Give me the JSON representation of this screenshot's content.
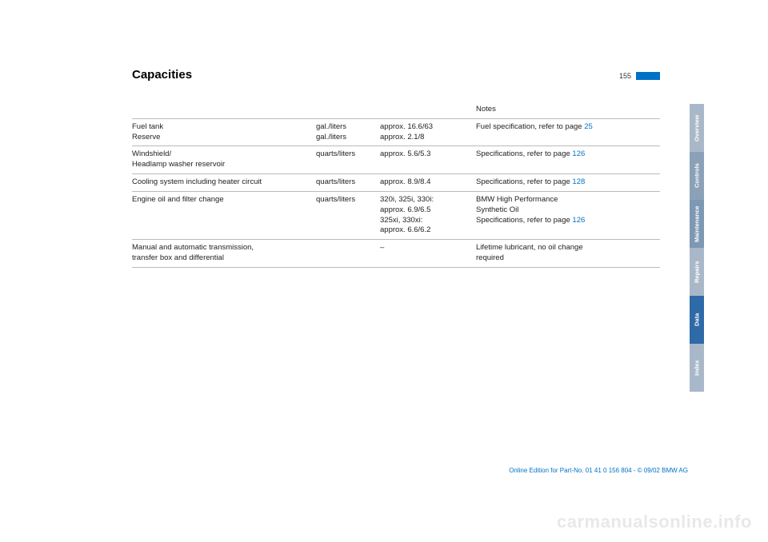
{
  "header": {
    "title": "Capacities",
    "page_number": "155"
  },
  "table": {
    "columns": [
      "",
      "",
      "",
      "Notes"
    ],
    "rows": [
      {
        "item": "Fuel tank\nReserve",
        "unit": "gal./liters\ngal./liters",
        "value": "approx. 16.6/63\napprox. 2.1/8",
        "notes_prefix": "Fuel specification, refer to page ",
        "notes_link": "25"
      },
      {
        "item": "Windshield/\nHeadlamp washer reservoir",
        "unit": "quarts/liters",
        "value": "approx. 5.6/5.3",
        "notes_prefix": "Specifications, refer to page ",
        "notes_link": "126"
      },
      {
        "item": "Cooling system including heater circuit",
        "unit": "quarts/liters",
        "value": "approx. 8.9/8.4",
        "notes_prefix": "Specifications, refer to page ",
        "notes_link": "128"
      },
      {
        "item": "Engine oil and filter change",
        "unit": "quarts/liters",
        "value": "320i, 325i, 330i:\napprox. 6.9/6.5\n325xi, 330xi:\napprox. 6.6/6.2",
        "notes_prefix": "BMW High Performance\nSynthetic Oil\nSpecifications, refer to page ",
        "notes_link": "126"
      },
      {
        "item": "Manual and automatic transmission,\ntransfer box and differential",
        "unit": "",
        "value": "–",
        "notes_prefix": "Lifetime lubricant, no oil change\nrequired",
        "notes_link": ""
      }
    ]
  },
  "side_tabs": {
    "overview": "Overview",
    "controls": "Controls",
    "maintenance": "Maintenance",
    "repairs": "Repairs",
    "data": "Data",
    "index": "Index"
  },
  "footer": "Online Edition for Part-No. 01 41 0 156 804 - © 09/02 BMW AG",
  "watermark": "carmanualsonline.info"
}
